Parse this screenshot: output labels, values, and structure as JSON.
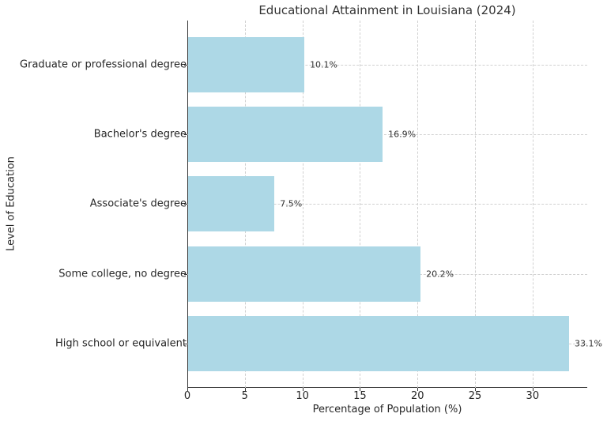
{
  "chart_data": {
    "type": "bar",
    "orientation": "horizontal",
    "title": "Educational Attainment in Louisiana (2024)",
    "xlabel": "Percentage of Population (%)",
    "ylabel": "Level of Education",
    "categories": [
      "High school or equivalent",
      "Some college, no degree",
      "Associate's degree",
      "Bachelor's degree",
      "Graduate or professional degree"
    ],
    "values": [
      33.1,
      20.2,
      7.5,
      16.9,
      10.1
    ],
    "value_labels": [
      "33.1%",
      "20.2%",
      "7.5%",
      "16.9%",
      "10.1%"
    ],
    "xlim": [
      0,
      34.75
    ],
    "xticks": [
      "0",
      "5",
      "10",
      "15",
      "20",
      "25",
      "30"
    ],
    "grid": true,
    "bar_color": "#add8e6"
  }
}
